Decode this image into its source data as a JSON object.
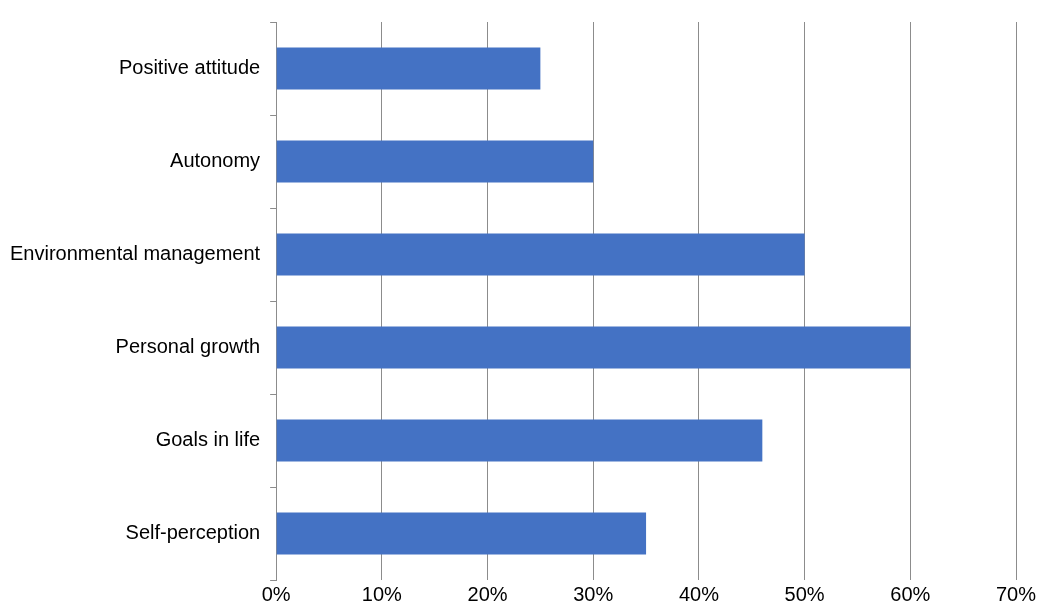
{
  "chart_data": {
    "type": "bar",
    "orientation": "horizontal",
    "categories": [
      "Positive attitude",
      "Autonomy",
      "Environmental management",
      "Personal growth",
      "Goals in life",
      "Self-perception"
    ],
    "values": [
      25,
      30,
      50,
      60,
      46,
      35
    ],
    "color": "#4472c4",
    "xlim": [
      0,
      70
    ],
    "xticks": [
      {
        "value": 0,
        "label": "0%"
      },
      {
        "value": 10,
        "label": "10%"
      },
      {
        "value": 20,
        "label": "20%"
      },
      {
        "value": 30,
        "label": "30%"
      },
      {
        "value": 40,
        "label": "40%"
      },
      {
        "value": 50,
        "label": "50%"
      },
      {
        "value": 60,
        "label": "60%"
      },
      {
        "value": 70,
        "label": "70%"
      }
    ],
    "grid": "x",
    "legend": false
  }
}
